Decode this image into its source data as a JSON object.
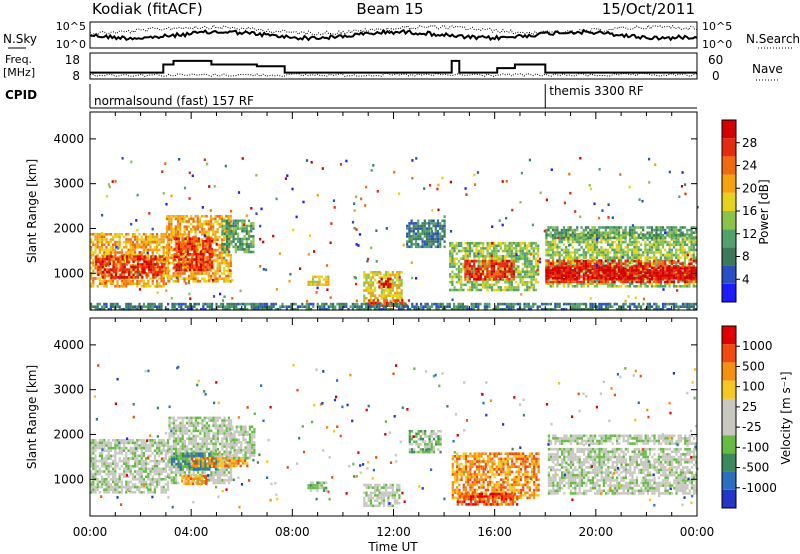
{
  "header": {
    "station": "Kodiak (fitACF)",
    "beam": "Beam 15",
    "date": "15/Oct/2011"
  },
  "strip": {
    "nsky_label": "N.Sky",
    "nsearch_label": "N.Search",
    "freq_label": "Freq.",
    "freq_unit": "[MHz]",
    "nave_label": "Nave",
    "cpid_label": "CPID",
    "nsky_ticks": [
      "10^5",
      "10^0"
    ],
    "nsearch_ticks": [
      "10^5",
      "10^0"
    ],
    "freq_ticks": [
      "18",
      "8"
    ],
    "nave_ticks": [
      "60",
      "0"
    ],
    "cpid_segments": [
      {
        "start_hour": 0,
        "name": "normalsound (fast) 157 RF"
      },
      {
        "start_hour": 18,
        "name": "themis 3300 RF"
      }
    ],
    "freq_steps": [
      {
        "t0": 0.0,
        "t1": 2.9,
        "mhz": 11
      },
      {
        "t0": 2.9,
        "t1": 3.3,
        "mhz": 15.5
      },
      {
        "t0": 3.3,
        "t1": 4.8,
        "mhz": 17.5
      },
      {
        "t0": 4.8,
        "t1": 6.6,
        "mhz": 15.5
      },
      {
        "t0": 6.6,
        "t1": 7.7,
        "mhz": 14.5
      },
      {
        "t0": 7.7,
        "t1": 14.3,
        "mhz": 11
      },
      {
        "t0": 14.3,
        "t1": 14.6,
        "mhz": 17.5
      },
      {
        "t0": 14.6,
        "t1": 16.1,
        "mhz": 11
      },
      {
        "t0": 16.1,
        "t1": 16.8,
        "mhz": 13.5
      },
      {
        "t0": 16.8,
        "t1": 18.0,
        "mhz": 15.5
      },
      {
        "t0": 18.0,
        "t1": 24.0,
        "mhz": 11
      }
    ]
  },
  "chart_data": [
    {
      "type": "heatmap",
      "name": "power",
      "xlabel": "",
      "ylabel": "Slant Range [km]",
      "xlim": [
        0,
        24
      ],
      "ylim": [
        180,
        4600
      ],
      "yticks": [
        1000,
        2000,
        3000,
        4000
      ],
      "colorbar_label": "Power [dB]",
      "colorbar_ticks": [
        "28",
        "24",
        "20",
        "16",
        "12",
        "8",
        "4"
      ],
      "colorbar_colors": [
        "#1c1cff",
        "#2a4fc2",
        "#3c7a5a",
        "#52a06a",
        "#8bc34a",
        "#e6d21a",
        "#f5a20f",
        "#f06a10",
        "#e62a0e",
        "#d40000"
      ],
      "regions": [
        {
          "t0": 0.0,
          "t1": 3.1,
          "r0": 700,
          "r1": 1900,
          "level": 6
        },
        {
          "t0": 0.2,
          "t1": 2.9,
          "r0": 900,
          "r1": 1400,
          "level": 8
        },
        {
          "t0": 3.0,
          "t1": 5.6,
          "r0": 800,
          "r1": 2300,
          "level": 6
        },
        {
          "t0": 3.3,
          "t1": 4.8,
          "r0": 1100,
          "r1": 1800,
          "level": 8
        },
        {
          "t0": 5.2,
          "t1": 6.5,
          "r0": 1500,
          "r1": 2200,
          "level": 3
        },
        {
          "t0": 8.6,
          "t1": 9.4,
          "r0": 750,
          "r1": 950,
          "level": 5
        },
        {
          "t0": 10.8,
          "t1": 12.3,
          "r0": 350,
          "r1": 1050,
          "level": 5
        },
        {
          "t0": 11.4,
          "t1": 11.9,
          "r0": 700,
          "r1": 900,
          "level": 9
        },
        {
          "t0": 11.0,
          "t1": 12.6,
          "r0": 260,
          "r1": 420,
          "level": 8
        },
        {
          "t0": 12.5,
          "t1": 14.0,
          "r0": 1600,
          "r1": 2200,
          "level": 2
        },
        {
          "t0": 14.2,
          "t1": 17.7,
          "r0": 650,
          "r1": 1700,
          "level": 4
        },
        {
          "t0": 14.8,
          "t1": 16.8,
          "r0": 850,
          "r1": 1300,
          "level": 8
        },
        {
          "t0": 18.0,
          "t1": 24.0,
          "r0": 700,
          "r1": 1900,
          "level": 4
        },
        {
          "t0": 18.0,
          "t1": 24.0,
          "r0": 800,
          "r1": 1300,
          "level": 8
        },
        {
          "t0": 18.0,
          "t1": 24.0,
          "r0": 900,
          "r1": 1150,
          "level": 9
        },
        {
          "t0": 18.0,
          "t1": 24.0,
          "r0": 1800,
          "r1": 2050,
          "level": 3
        },
        {
          "t0": 0.0,
          "t1": 24.0,
          "r0": 190,
          "r1": 340,
          "level": 2
        }
      ]
    },
    {
      "type": "heatmap",
      "name": "velocity",
      "xlabel": "Time UT",
      "ylabel": "Slant Range [km]",
      "xlim": [
        0,
        24
      ],
      "ylim": [
        180,
        4600
      ],
      "xticks": [
        "00:00",
        "04:00",
        "08:00",
        "12:00",
        "16:00",
        "20:00",
        "00:00"
      ],
      "yticks": [
        1000,
        2000,
        3000,
        4000
      ],
      "colorbar_label": "Velocity [m s⁻¹]",
      "colorbar_ticks": [
        "1000",
        "500",
        "100",
        "25",
        "-25",
        "-100",
        "-500",
        "-1000"
      ],
      "colorbar_colors": [
        "#2236c8",
        "#2c6fc0",
        "#3c8a5a",
        "#66bb44",
        "#c8c8c0",
        "#c8c8c0",
        "#f5c820",
        "#f59010",
        "#f04a10",
        "#e00000"
      ],
      "regions": [
        {
          "t0": 0.0,
          "t1": 3.1,
          "r0": 700,
          "r1": 1900,
          "level": 4
        },
        {
          "t0": 3.1,
          "t1": 5.6,
          "r0": 900,
          "r1": 2400,
          "level": 4
        },
        {
          "t0": 3.2,
          "t1": 5.0,
          "r0": 1200,
          "r1": 1600,
          "level": 2
        },
        {
          "t0": 4.0,
          "t1": 6.2,
          "r0": 1300,
          "r1": 1500,
          "level": 7
        },
        {
          "t0": 3.6,
          "t1": 4.6,
          "r0": 900,
          "r1": 1100,
          "level": 7
        },
        {
          "t0": 5.5,
          "t1": 6.5,
          "r0": 1500,
          "r1": 2200,
          "level": 4
        },
        {
          "t0": 8.6,
          "t1": 9.3,
          "r0": 750,
          "r1": 950,
          "level": 3
        },
        {
          "t0": 10.8,
          "t1": 12.2,
          "r0": 400,
          "r1": 900,
          "level": 4
        },
        {
          "t0": 12.6,
          "t1": 13.9,
          "r0": 1600,
          "r1": 2100,
          "level": 3
        },
        {
          "t0": 14.3,
          "t1": 17.7,
          "r0": 600,
          "r1": 1600,
          "level": 7
        },
        {
          "t0": 14.5,
          "t1": 17.0,
          "r0": 450,
          "r1": 700,
          "level": 8
        },
        {
          "t0": 18.1,
          "t1": 24.0,
          "r0": 700,
          "r1": 1700,
          "level": 4
        },
        {
          "t0": 18.1,
          "t1": 24.0,
          "r0": 1800,
          "r1": 2000,
          "level": 4
        }
      ]
    }
  ]
}
